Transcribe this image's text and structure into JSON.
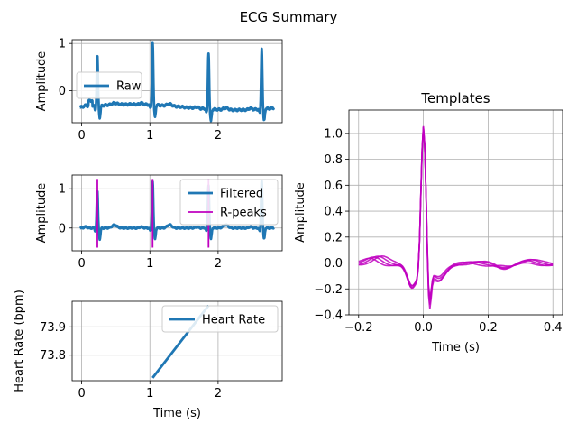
{
  "title": "ECG Summary",
  "chart_data": [
    {
      "id": "raw",
      "type": "line",
      "xlabel": "",
      "ylabel": "Amplitude",
      "xlim": [
        -0.14,
        2.94
      ],
      "ylim": [
        -0.68,
        1.08
      ],
      "xticks": [
        0,
        1,
        2
      ],
      "yticks": [
        0,
        1
      ],
      "grid": true,
      "legend": {
        "position": "center-left",
        "entries": [
          {
            "label": "Raw",
            "color": "#1f77b4"
          }
        ]
      },
      "series": [
        {
          "name": "Raw",
          "color": "#1f77b4",
          "r_peaks": [
            0.23,
            1.04,
            1.86,
            2.64
          ],
          "peak_values": [
            0.72,
            0.98,
            0.85,
            0.93
          ],
          "baseline": -0.35
        }
      ]
    },
    {
      "id": "filtered",
      "type": "line",
      "xlabel": "",
      "ylabel": "Amplitude",
      "xlim": [
        -0.14,
        2.94
      ],
      "ylim": [
        -0.58,
        1.35
      ],
      "xticks": [
        0,
        1,
        2
      ],
      "yticks": [
        0,
        1
      ],
      "grid": true,
      "legend": {
        "position": "upper-right",
        "entries": [
          {
            "label": "Filtered",
            "color": "#1f77b4"
          },
          {
            "label": "R-peaks",
            "color": "#bf00bf"
          }
        ]
      },
      "series": [
        {
          "name": "Filtered",
          "color": "#1f77b4",
          "r_peaks": [
            0.23,
            1.04,
            1.86,
            2.64
          ],
          "peak_values": [
            0.95,
            1.2,
            1.1,
            1.2
          ]
        }
      ],
      "r_peaks": {
        "name": "R-peaks",
        "color": "#bf00bf",
        "x": [
          0.23,
          1.04,
          1.86
        ],
        "ymin": -0.5,
        "ymax": 1.25
      }
    },
    {
      "id": "heart_rate",
      "type": "line",
      "xlabel": "Time (s)",
      "ylabel": "Heart Rate (bpm)",
      "xlim": [
        -0.14,
        2.94
      ],
      "ylim": [
        73.71,
        73.99
      ],
      "xticks": [
        0,
        1,
        2
      ],
      "yticks": [
        73.8,
        73.9
      ],
      "ytick_labels": [
        "73.8",
        "73.9"
      ],
      "grid": true,
      "legend": {
        "position": "upper-right",
        "entries": [
          {
            "label": "Heart Rate",
            "color": "#1f77b4"
          }
        ]
      },
      "series": [
        {
          "name": "Heart Rate",
          "color": "#1f77b4",
          "x": [
            1.04,
            1.86
          ],
          "y": [
            73.72,
            73.975
          ]
        }
      ]
    },
    {
      "id": "templates",
      "type": "line",
      "title": "Templates",
      "xlabel": "Time (s)",
      "ylabel": "Amplitude",
      "xlim": [
        -0.23,
        0.43
      ],
      "ylim": [
        -0.4,
        1.18
      ],
      "xticks": [
        -0.2,
        0.0,
        0.2,
        0.4
      ],
      "xtick_labels": [
        "−0.2",
        "0.0",
        "0.2",
        "0.4"
      ],
      "yticks": [
        -0.4,
        -0.2,
        0.0,
        0.2,
        0.4,
        0.6,
        0.8,
        1.0
      ],
      "ytick_labels": [
        "−0.4",
        "−0.2",
        "0.0",
        "0.2",
        "0.4",
        "0.6",
        "0.8",
        "1.0"
      ],
      "grid": true,
      "color": "#bf00bf",
      "series_count": 4
    }
  ]
}
